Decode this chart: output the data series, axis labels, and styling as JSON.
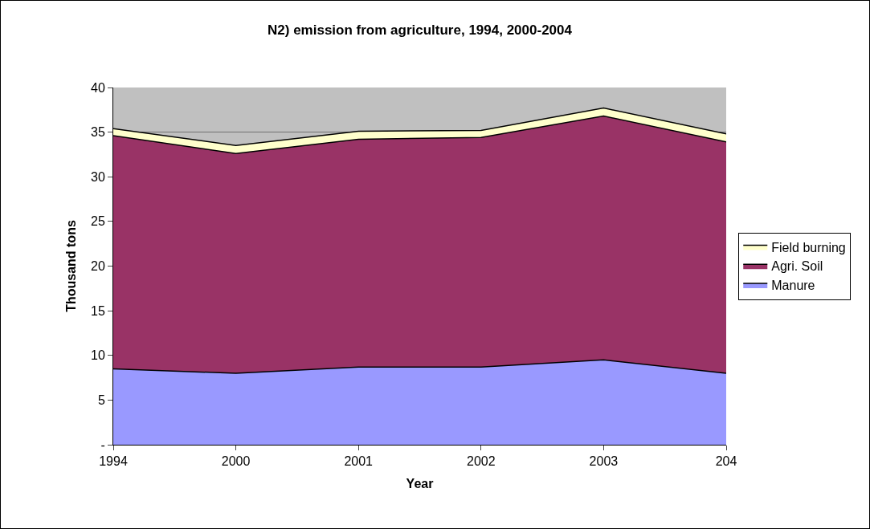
{
  "chart_data": {
    "type": "area",
    "stacked": true,
    "title": "N2) emission from agriculture, 1994, 2000-2004",
    "xlabel": "Year",
    "ylabel": "Thousand tons",
    "categories": [
      "1994",
      "2000",
      "2001",
      "2002",
      "2003",
      "204"
    ],
    "series": [
      {
        "name": "Manure",
        "color": "#9999ff",
        "values": [
          8.5,
          8.0,
          8.7,
          8.7,
          9.5,
          8.0
        ]
      },
      {
        "name": "Agri. Soil",
        "color": "#993366",
        "values": [
          26.1,
          24.6,
          25.5,
          25.7,
          27.3,
          25.9
        ]
      },
      {
        "name": "Field burning",
        "color": "#ffffcc",
        "values": [
          0.8,
          0.9,
          0.9,
          0.8,
          0.9,
          0.9
        ]
      }
    ],
    "ylim": [
      0,
      40
    ],
    "yticks": [
      {
        "value": 0,
        "label": "-"
      },
      5,
      10,
      15,
      20,
      25,
      30,
      35,
      40
    ],
    "grid": "y",
    "legend": "right"
  }
}
